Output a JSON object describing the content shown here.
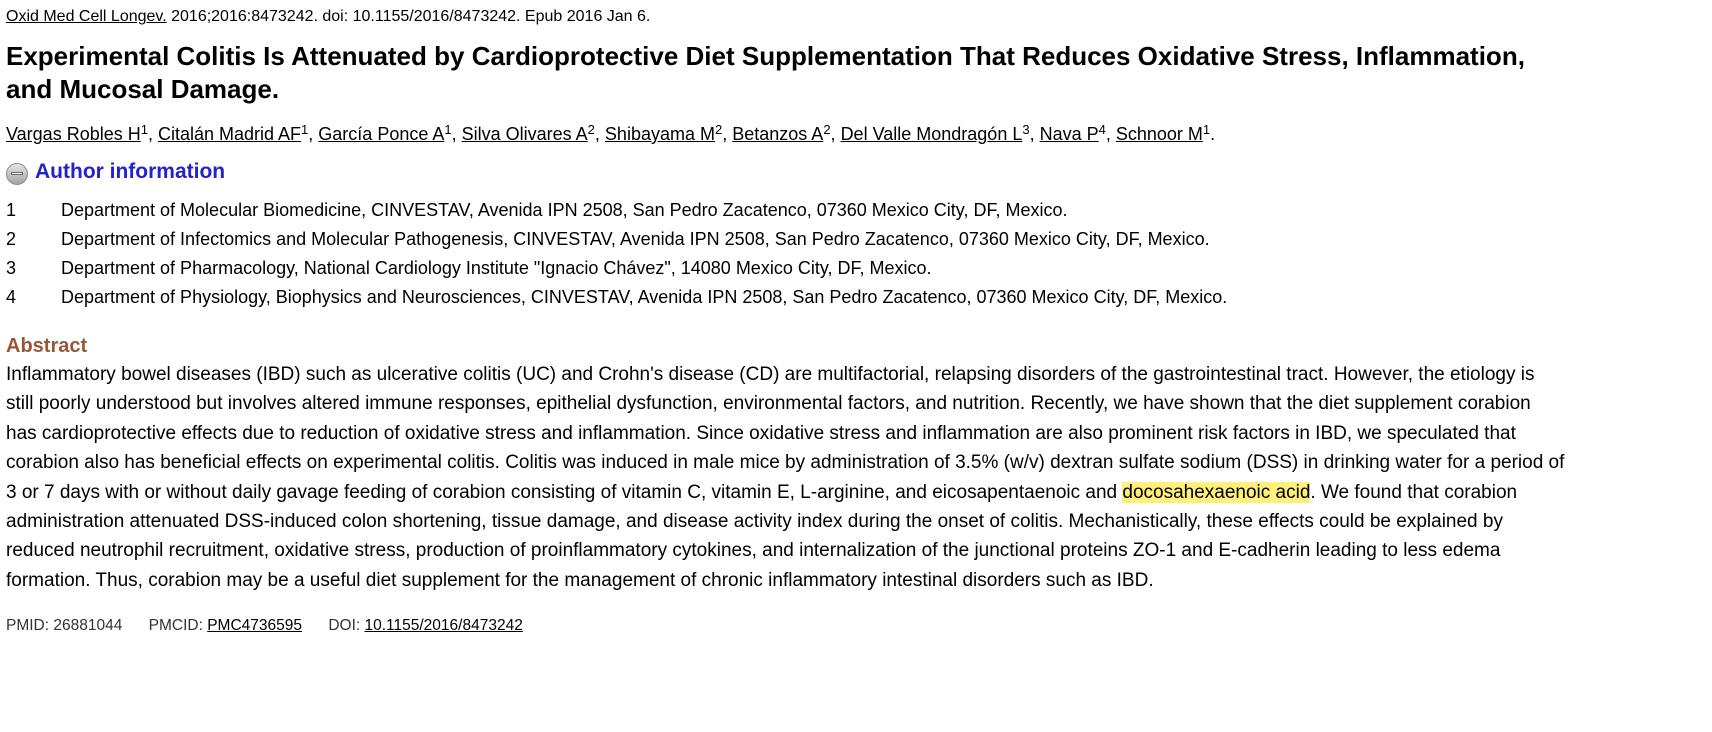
{
  "citation": {
    "journal": "Oxid Med Cell Longev.",
    "details": " 2016;2016:8473242. doi: 10.1155/2016/8473242. Epub 2016 Jan 6."
  },
  "title": "Experimental Colitis Is Attenuated by Cardioprotective Diet Supplementation That Reduces Oxidative Stress, Inflammation, and Mucosal Damage.",
  "authors": [
    {
      "name": "Vargas Robles H",
      "sup": "1"
    },
    {
      "name": "Citalán Madrid AF",
      "sup": "1"
    },
    {
      "name": "García Ponce A",
      "sup": "1"
    },
    {
      "name": "Silva Olivares A",
      "sup": "2"
    },
    {
      "name": "Shibayama M",
      "sup": "2"
    },
    {
      "name": "Betanzos A",
      "sup": "2"
    },
    {
      "name": "Del Valle Mondragón L",
      "sup": "3"
    },
    {
      "name": "Nava P",
      "sup": "4"
    },
    {
      "name": "Schnoor M",
      "sup": "1"
    }
  ],
  "author_info": {
    "toggle_label": "Author information",
    "icon": "collapse-minus-icon",
    "affiliations": [
      {
        "num": "1",
        "text": "Department of Molecular Biomedicine, CINVESTAV, Avenida IPN 2508, San Pedro Zacatenco, 07360 Mexico City, DF, Mexico."
      },
      {
        "num": "2",
        "text": "Department of Infectomics and Molecular Pathogenesis, CINVESTAV, Avenida IPN 2508, San Pedro Zacatenco, 07360 Mexico City, DF, Mexico."
      },
      {
        "num": "3",
        "text": "Department of Pharmacology, National Cardiology Institute \"Ignacio Chávez\", 14080 Mexico City, DF, Mexico."
      },
      {
        "num": "4",
        "text": "Department of Physiology, Biophysics and Neurosciences, CINVESTAV, Avenida IPN 2508, San Pedro Zacatenco, 07360 Mexico City, DF, Mexico."
      }
    ]
  },
  "abstract": {
    "heading": "Abstract",
    "text_before": "Inflammatory bowel diseases (IBD) such as ulcerative colitis (UC) and Crohn's disease (CD) are multifactorial, relapsing disorders of the gastrointestinal tract. However, the etiology is still poorly understood but involves altered immune responses, epithelial dysfunction, environmental factors, and nutrition. Recently, we have shown that the diet supplement corabion has cardioprotective effects due to reduction of oxidative stress and inflammation. Since oxidative stress and inflammation are also prominent risk factors in IBD, we speculated that corabion also has beneficial effects on experimental colitis. Colitis was induced in male mice by administration of 3.5% (w/v) dextran sulfate sodium (DSS) in drinking water for a period of 3 or 7 days with or without daily gavage feeding of corabion consisting of vitamin C, vitamin E, L-arginine, and eicosapentaenoic and ",
    "highlight": "docosahexaenoic acid",
    "text_after": ". We found that corabion administration attenuated DSS-induced colon shortening, tissue damage, and disease activity index during the onset of colitis. Mechanistically, these effects could be explained by reduced neutrophil recruitment, oxidative stress, production of proinflammatory cytokines, and internalization of the junctional proteins ZO-1 and E-cadherin leading to less edema formation. Thus, corabion may be a useful diet supplement for the management of chronic inflammatory intestinal disorders such as IBD."
  },
  "ids": {
    "pmid_label": "PMID: ",
    "pmid": "26881044",
    "pmcid_label": "PMCID: ",
    "pmcid": "PMC4736595",
    "doi_label": "DOI: ",
    "doi": "10.1155/2016/8473242"
  },
  "colors": {
    "author_info_blue": "#2323c8",
    "abstract_heading": "#985735",
    "highlight": "#fff07a"
  }
}
